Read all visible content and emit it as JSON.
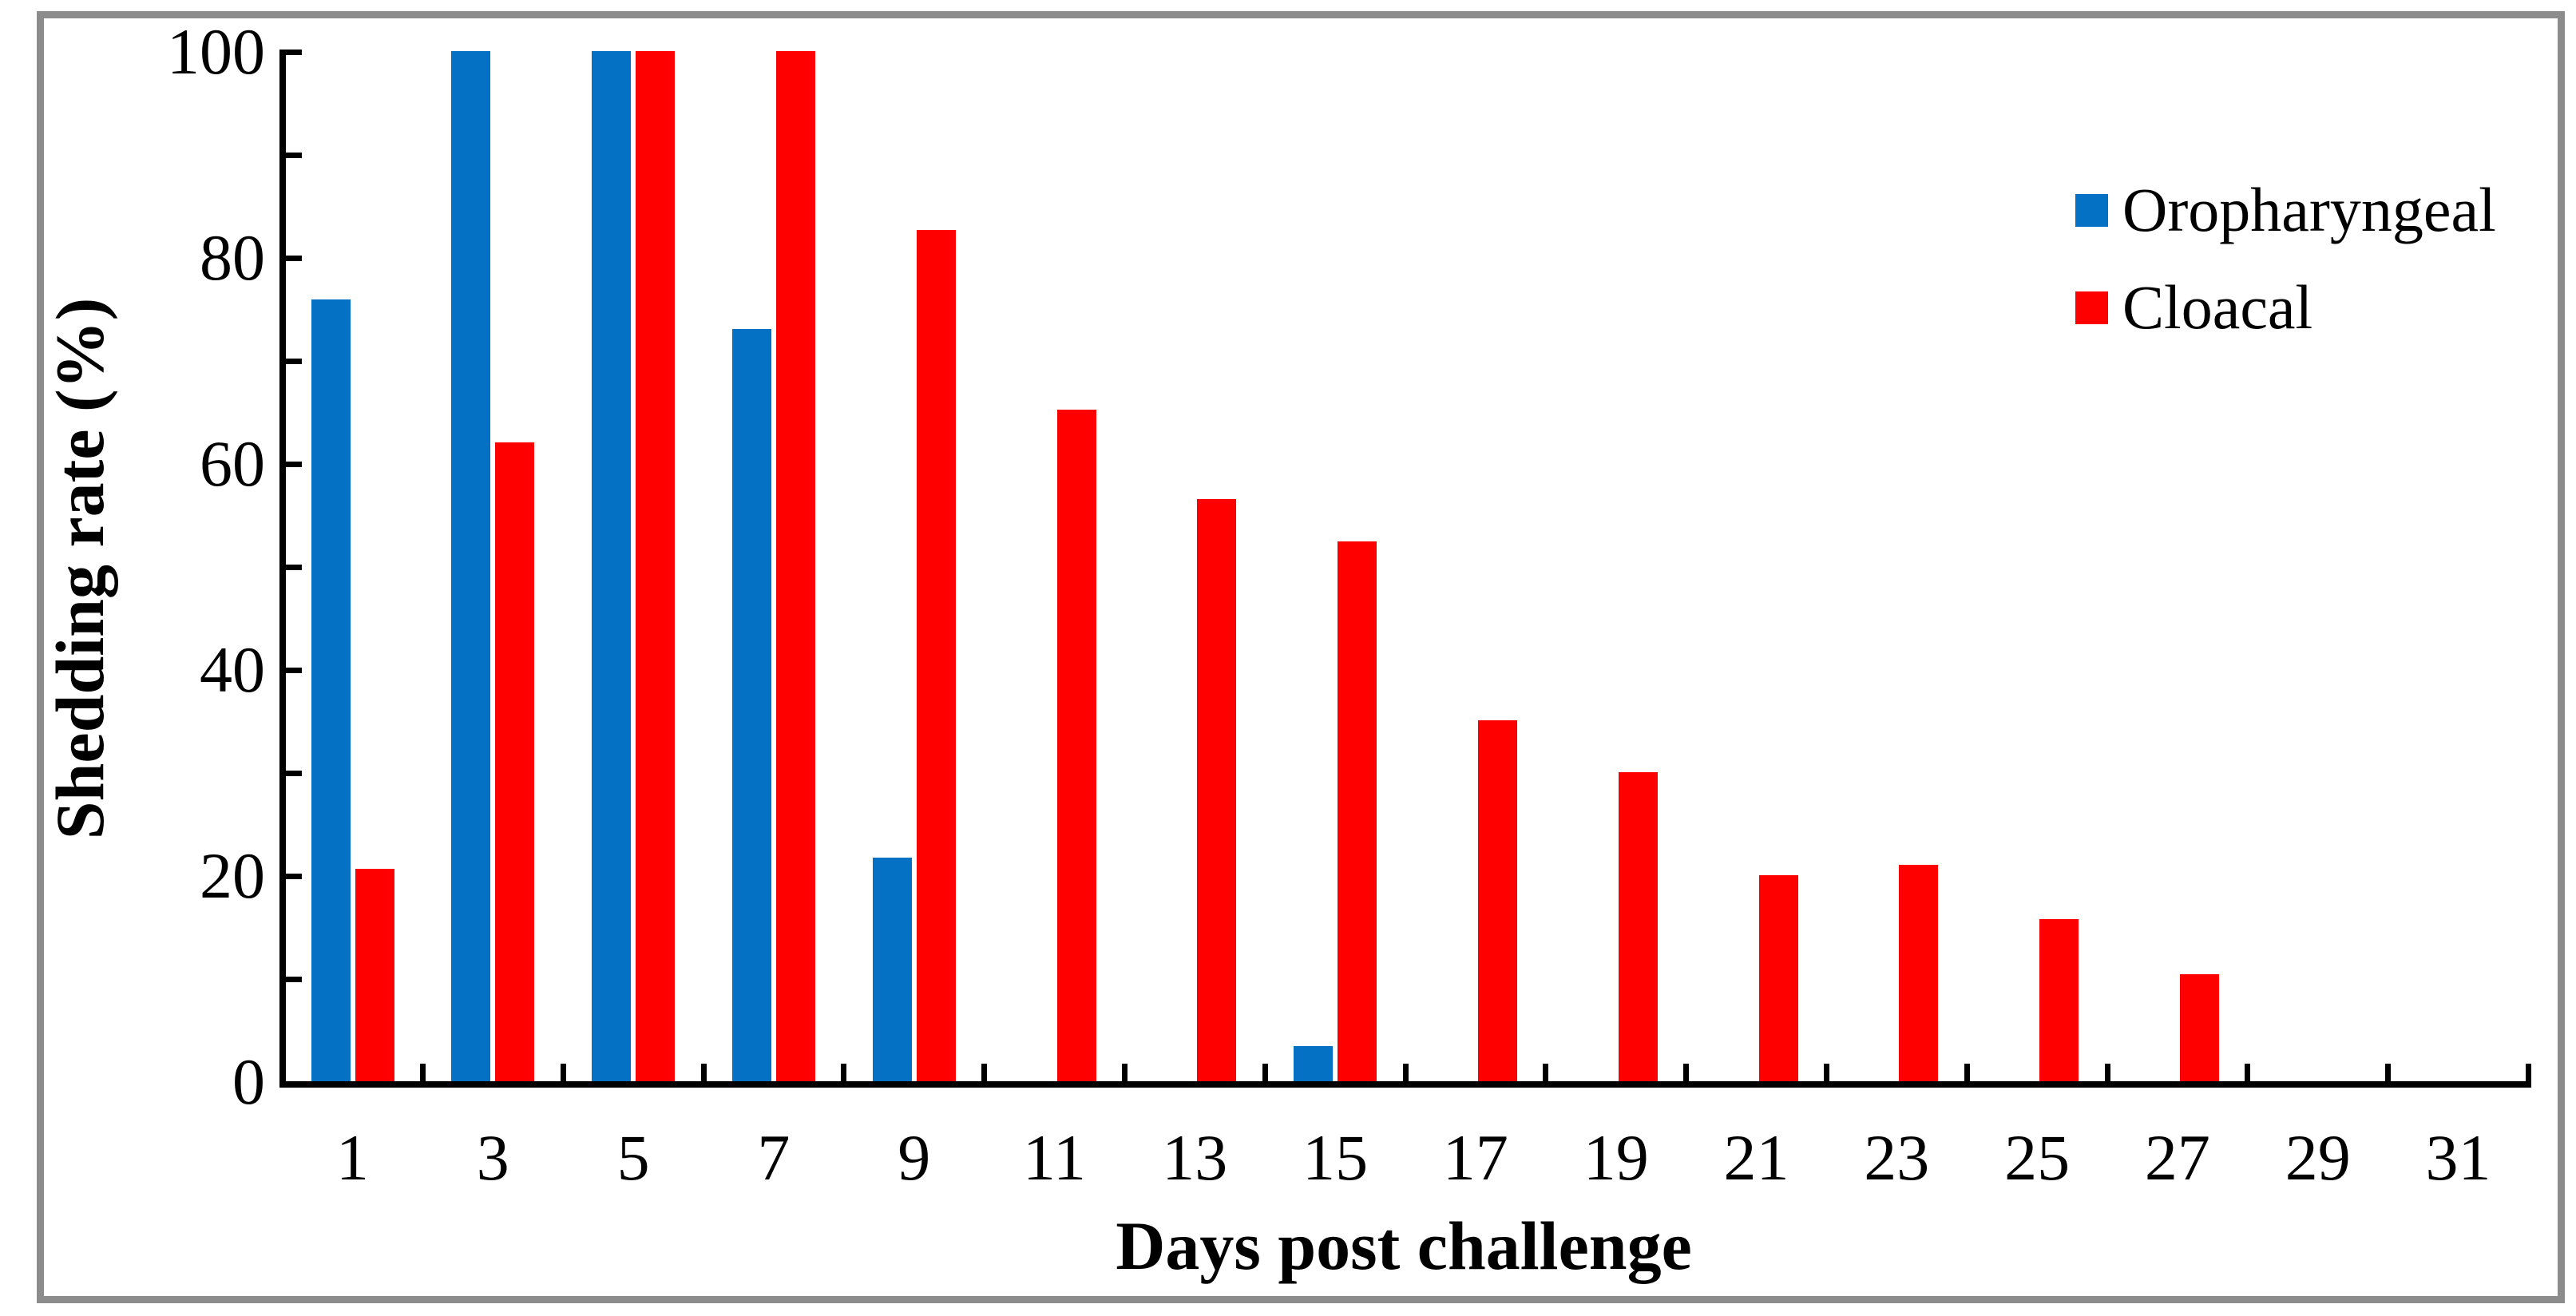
{
  "figure": {
    "background_color": "#ffffff",
    "border_color": "#8c8c8c"
  },
  "chart_data": {
    "type": "bar",
    "title": "",
    "xlabel": "Days post challenge",
    "ylabel": "Shedding rate (%)",
    "categories": [
      "1",
      "3",
      "5",
      "7",
      "9",
      "11",
      "13",
      "15",
      "17",
      "19",
      "21",
      "23",
      "25",
      "27",
      "29",
      "31"
    ],
    "series": [
      {
        "name": "Oropharyngeal",
        "color": "#0471c4",
        "values": [
          75.9,
          100,
          100,
          73,
          21.7,
          0,
          0,
          3.4,
          0,
          0,
          0,
          0,
          0,
          0,
          0,
          0
        ]
      },
      {
        "name": "Cloacal",
        "color": "#ff0000",
        "values": [
          20.6,
          62,
          100,
          100,
          82.6,
          65.2,
          56.5,
          52.4,
          35,
          30,
          20,
          21,
          15.7,
          10.4,
          0,
          0
        ]
      }
    ],
    "ylim": [
      0,
      100
    ],
    "ytick_labels": [
      "0",
      "20",
      "40",
      "60",
      "80",
      "100"
    ],
    "ytick_label_interval": 20,
    "ytick_minor_interval": 10,
    "grid": false,
    "legend_position": "upper right"
  },
  "legend": {
    "items": [
      {
        "label": "Oropharyngeal",
        "color": "#0471c4"
      },
      {
        "label": "Cloacal",
        "color": "#ff0000"
      }
    ]
  }
}
